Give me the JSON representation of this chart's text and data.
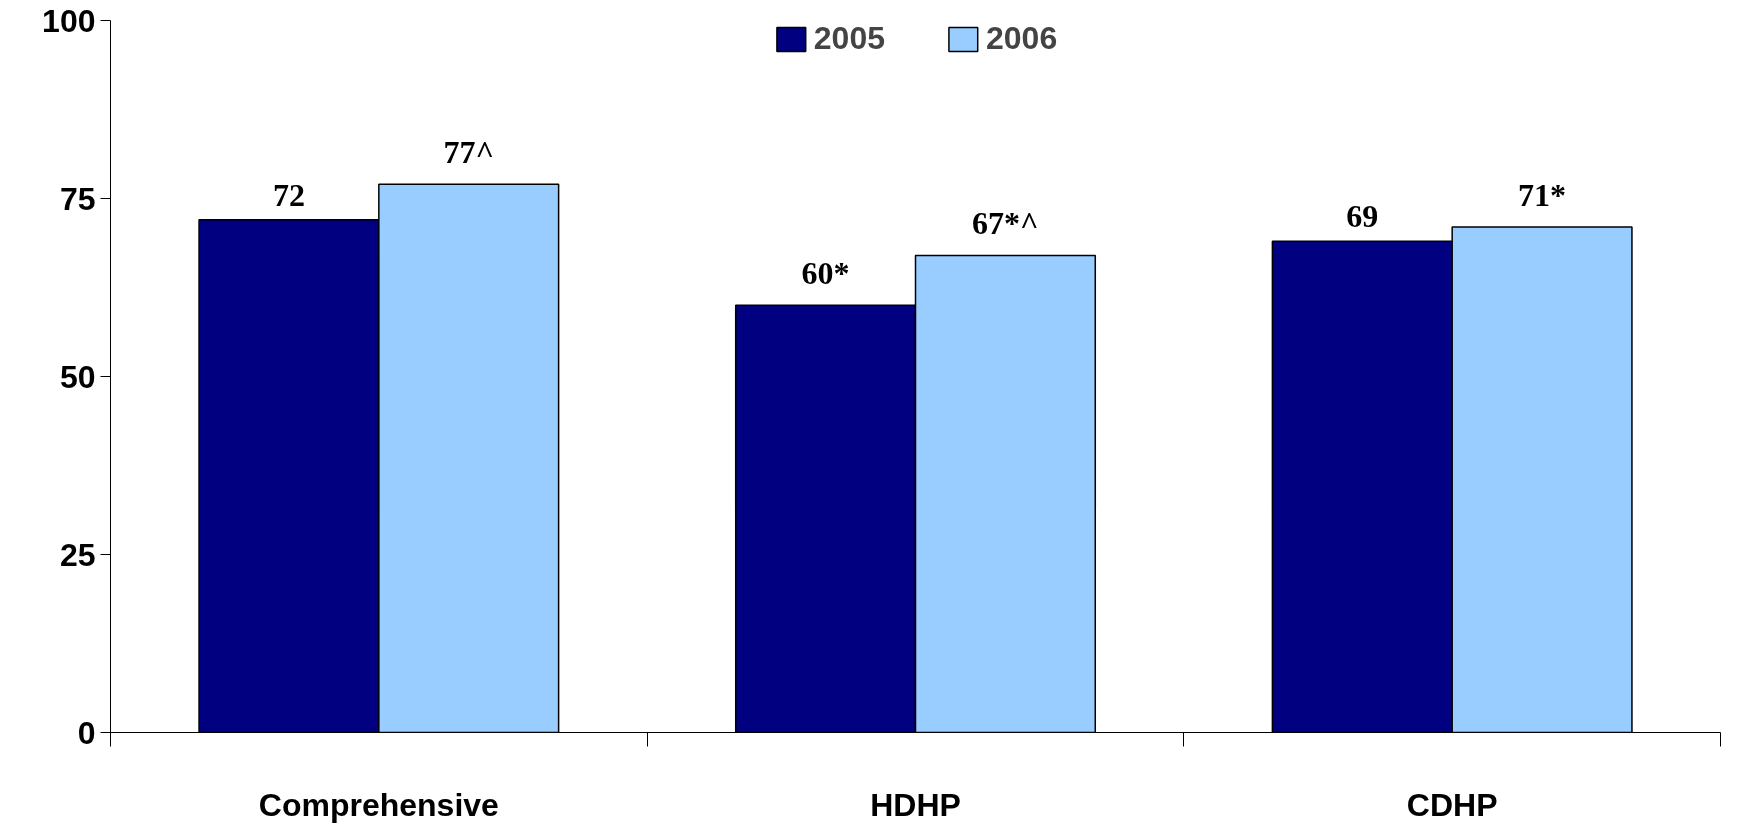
{
  "chart_data": {
    "type": "bar",
    "categories": [
      "Comprehensive",
      "HDHP",
      "CDHP"
    ],
    "series": [
      {
        "name": "2005",
        "color": "#000080",
        "values": [
          72,
          60,
          69
        ],
        "value_labels": [
          "72",
          "60*",
          "69"
        ]
      },
      {
        "name": "2006",
        "color": "#99ccff",
        "values": [
          77,
          67,
          71
        ],
        "value_labels": [
          "77^",
          "67*^",
          "71*"
        ]
      }
    ],
    "ylim": [
      0,
      100
    ],
    "yticks": [
      0,
      25,
      50,
      75,
      100
    ],
    "grid": false,
    "legend": "top"
  }
}
